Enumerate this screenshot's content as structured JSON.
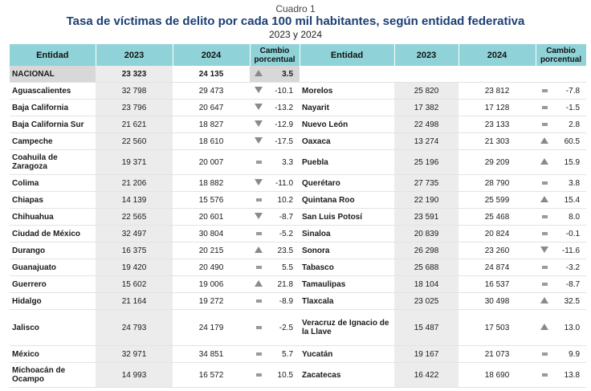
{
  "header": {
    "cuadro": "Cuadro 1",
    "title": "Tasa de víctimas de delito por cada 100 mil habitantes, según entidad federativa",
    "years": "2023 y 2024"
  },
  "columns": {
    "entidad": "Entidad",
    "y2023": "2023",
    "y2024": "2024",
    "cambio": "Cambio porcentual"
  },
  "national": {
    "name": "NACIONAL",
    "v2023": "23 323",
    "v2024": "24 135",
    "icon": "up",
    "change": "3.5"
  },
  "left": [
    {
      "name": "Aguascalientes",
      "v2023": "32 798",
      "v2024": "29 473",
      "icon": "down",
      "change": "-10.1"
    },
    {
      "name": "Baja California",
      "v2023": "23 796",
      "v2024": "20 647",
      "icon": "down",
      "change": "-13.2"
    },
    {
      "name": "Baja California Sur",
      "v2023": "21 621",
      "v2024": "18 827",
      "icon": "down",
      "change": "-12.9"
    },
    {
      "name": "Campeche",
      "v2023": "22 560",
      "v2024": "18 610",
      "icon": "down",
      "change": "-17.5"
    },
    {
      "name": "Coahuila de Zaragoza",
      "v2023": "19 371",
      "v2024": "20 007",
      "icon": "equal",
      "change": "3.3"
    },
    {
      "name": "Colima",
      "v2023": "21 206",
      "v2024": "18 882",
      "icon": "down",
      "change": "-11.0"
    },
    {
      "name": "Chiapas",
      "v2023": "14 139",
      "v2024": "15 576",
      "icon": "equal",
      "change": "10.2"
    },
    {
      "name": "Chihuahua",
      "v2023": "22 565",
      "v2024": "20 601",
      "icon": "down",
      "change": "-8.7"
    },
    {
      "name": "Ciudad de México",
      "v2023": "32 497",
      "v2024": "30 804",
      "icon": "equal",
      "change": "-5.2"
    },
    {
      "name": "Durango",
      "v2023": "16 375",
      "v2024": "20 215",
      "icon": "up",
      "change": "23.5"
    },
    {
      "name": "Guanajuato",
      "v2023": "19 420",
      "v2024": "20 490",
      "icon": "equal",
      "change": "5.5"
    },
    {
      "name": "Guerrero",
      "v2023": "15 602",
      "v2024": "19 006",
      "icon": "up",
      "change": "21.8"
    },
    {
      "name": "Hidalgo",
      "v2023": "21 164",
      "v2024": "19 272",
      "icon": "equal",
      "change": "-8.9"
    },
    {
      "name": "Jalisco",
      "v2023": "24 793",
      "v2024": "24 179",
      "icon": "equal",
      "change": "-2.5"
    },
    {
      "name": "México",
      "v2023": "32 971",
      "v2024": "34 851",
      "icon": "equal",
      "change": "5.7"
    },
    {
      "name": "Michoacán de Ocampo",
      "v2023": "14 993",
      "v2024": "16 572",
      "icon": "equal",
      "change": "10.5"
    }
  ],
  "right": [
    {
      "name": "",
      "v2023": "",
      "v2024": "",
      "icon": "",
      "change": ""
    },
    {
      "name": "Morelos",
      "v2023": "25 820",
      "v2024": "23 812",
      "icon": "equal",
      "change": "-7.8"
    },
    {
      "name": "Nayarit",
      "v2023": "17 382",
      "v2024": "17 128",
      "icon": "equal",
      "change": "-1.5"
    },
    {
      "name": "Nuevo León",
      "v2023": "22 498",
      "v2024": "23 133",
      "icon": "equal",
      "change": "2.8"
    },
    {
      "name": "Oaxaca",
      "v2023": "13 274",
      "v2024": "21 303",
      "icon": "up",
      "change": "60.5"
    },
    {
      "name": "Puebla",
      "v2023": "25 196",
      "v2024": "29 209",
      "icon": "up",
      "change": "15.9"
    },
    {
      "name": "Querétaro",
      "v2023": "27 735",
      "v2024": "28 790",
      "icon": "equal",
      "change": "3.8"
    },
    {
      "name": "Quintana Roo",
      "v2023": "22 190",
      "v2024": "25 599",
      "icon": "up",
      "change": "15.4"
    },
    {
      "name": "San Luis Potosí",
      "v2023": "23 591",
      "v2024": "25 468",
      "icon": "equal",
      "change": "8.0"
    },
    {
      "name": "Sinaloa",
      "v2023": "20 839",
      "v2024": "20 824",
      "icon": "equal",
      "change": "-0.1"
    },
    {
      "name": "Sonora",
      "v2023": "26 298",
      "v2024": "23 260",
      "icon": "down",
      "change": "-11.6"
    },
    {
      "name": "Tabasco",
      "v2023": "25 688",
      "v2024": "24 874",
      "icon": "equal",
      "change": "-3.2"
    },
    {
      "name": "Tamaulipas",
      "v2023": "18 104",
      "v2024": "16 537",
      "icon": "equal",
      "change": "-8.7"
    },
    {
      "name": "Tlaxcala",
      "v2023": "23 025",
      "v2024": "30 498",
      "icon": "up",
      "change": "32.5"
    },
    {
      "name": "Veracruz de Ignacio de la Llave",
      "v2023": "15 487",
      "v2024": "17 503",
      "icon": "up",
      "change": "13.0"
    },
    {
      "name": "Yucatán",
      "v2023": "19 167",
      "v2024": "21 073",
      "icon": "equal",
      "change": "9.9"
    },
    {
      "name": "Zacatecas",
      "v2023": "16 422",
      "v2024": "18 690",
      "icon": "equal",
      "change": "13.8"
    }
  ]
}
